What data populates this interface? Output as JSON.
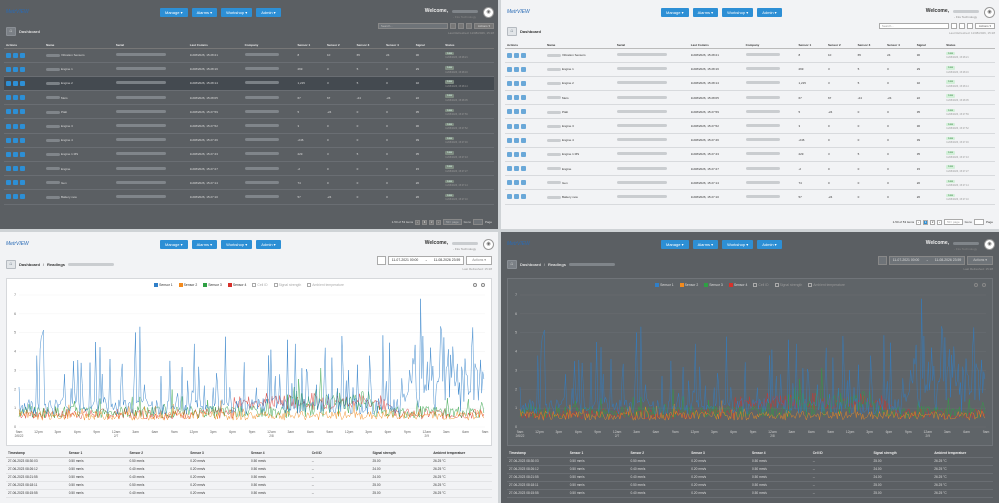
{
  "nav": {
    "manage": "Manage ▾",
    "alarms": "Alarms ▾",
    "workshop": "Workshop ▾",
    "admin": "Admin ▾"
  },
  "brand": {
    "logo": "Metr",
    "logo_accent": "VIEW"
  },
  "welcome": "Welcome,",
  "org_suffix": "- Fire Technology",
  "breadcrumb": {
    "dashboard": "Dashboard",
    "readings": "Readings"
  },
  "grid": {
    "headers": [
      "Actions",
      "Name",
      "Serial",
      "Last Comms",
      "Company",
      "Sensor 1",
      "Sensor 2",
      "Sensor 3",
      "Sensor 4",
      "Signal",
      "Status"
    ],
    "search_placeholder": "Search...",
    "actions_label": "Actions ▾",
    "last_refreshed": "Last Refreshed: 11/08/2026, 15:28",
    "rows": [
      {
        "name": "Vibration Sensors",
        "last": "11/08/2026, 15:28:21",
        "s1": "8",
        "s2": "10",
        "s3": "65",
        "s4": "24",
        "sig": "30",
        "status": "Live",
        "sdate": "11/08/2026, 15:28:21"
      },
      {
        "name": "Engine 1",
        "last": "11/08/2026, 15:28:16",
        "s1": "269",
        "s2": "3",
        "s3": "5",
        "s4": "0",
        "sig": "29",
        "status": "Live",
        "sdate": "11/08/2026, 15:28:16"
      },
      {
        "name": "Engine 2",
        "last": "11/08/2026, 15:28:14",
        "s1": "1,215",
        "s2": "3",
        "s3": "5",
        "s4": "0",
        "sig": "32",
        "status": "Live",
        "sdate": "11/08/2026, 15:28:14"
      },
      {
        "name": "Mers",
        "last": "11/08/2026, 15:28:05",
        "s1": "67",
        "s2": "67",
        "s3": "-24",
        "s4": "-24",
        "sig": "22",
        "status": "Live",
        "sdate": "11/08/2026, 15:28:05"
      },
      {
        "name": "Ptab",
        "last": "11/08/2026, 15:27:59",
        "s1": "5",
        "s2": "-24",
        "s3": "0",
        "s4": "0",
        "sig": "35",
        "status": "Live",
        "sdate": "11/08/2026, 15:27:59"
      },
      {
        "name": "Engine 3",
        "last": "11/08/2026, 15:27:52",
        "s1": "3",
        "s2": "0",
        "s3": "0",
        "s4": "0",
        "sig": "30",
        "status": "Live",
        "sdate": "11/08/2026, 15:27:52"
      },
      {
        "name": "Engine 4",
        "last": "11/08/2026, 15:27:46",
        "s1": "-246",
        "s2": "0",
        "s3": "0",
        "s4": "0",
        "sig": "39",
        "status": "Live",
        "sdate": "11/08/2026, 15:27:46"
      },
      {
        "name": "Engine 1 MS",
        "last": "11/08/2026, 15:27:43",
        "s1": "229",
        "s2": "3",
        "s3": "5",
        "s4": "0",
        "sig": "35",
        "status": "Live",
        "sdate": "11/08/2026, 15:27:43"
      },
      {
        "name": "Engine",
        "last": "11/08/2026, 15:27:27",
        "s1": "-2",
        "s2": "0",
        "s3": "0",
        "s4": "0",
        "sig": "15",
        "status": "Live",
        "sdate": "11/08/2026, 15:27:27"
      },
      {
        "name": "Gen",
        "last": "11/08/2026, 15:27:14",
        "s1": "74",
        "s2": "0",
        "s3": "0",
        "s4": "0",
        "sig": "20",
        "status": "Live",
        "sdate": "11/08/2026, 15:27:14"
      },
      {
        "name": "Battery new",
        "last": "11/08/2026, 15:27:10",
        "s1": "57",
        "s2": "-24",
        "s3": "0",
        "s4": "0",
        "sig": "26",
        "status": "Live",
        "sdate": "11/08/2026, 15:27:10"
      }
    ],
    "pager": "1-50 of 53 items",
    "page_size": "50 / page",
    "goto": "Go to",
    "page_word": "Page"
  },
  "readings": {
    "date_from": "11-07-2021 00:00",
    "date_to": "11-08-2026 23:59",
    "actions_label": "Actions ▾",
    "last_refreshed": "Last Refreshed: 15:28",
    "table_headers": [
      "Timestamp",
      "Sensor 1",
      "Sensor 2",
      "Sensor 3",
      "Sensor 4",
      "Cell ID",
      "Signal strength",
      "Ambient temperature"
    ],
    "table_rows": [
      [
        "27-06-2023 08:30:03",
        "0.50 mm/s",
        "0.50 mm/s",
        "0.20 mm/s",
        "0.50 mm/s",
        "--",
        "25.00",
        "26.25 °C"
      ],
      [
        "27-06-2023 08:26:12",
        "0.50 mm/s",
        "0.40 mm/s",
        "0.20 mm/s",
        "0.50 mm/s",
        "--",
        "24.00",
        "26.25 °C"
      ],
      [
        "27-06-2023 08:21:55",
        "0.50 mm/s",
        "0.40 mm/s",
        "0.20 mm/s",
        "0.50 mm/s",
        "--",
        "24.00",
        "26.25 °C"
      ],
      [
        "27-06-2023 08:18:11",
        "0.50 mm/s",
        "0.50 mm/s",
        "0.20 mm/s",
        "0.50 mm/s",
        "--",
        "25.00",
        "26.25 °C"
      ],
      [
        "27-06-2023 08:15:55",
        "0.50 mm/s",
        "0.40 mm/s",
        "0.20 mm/s",
        "0.50 mm/s",
        "--",
        "25.00",
        "26.25 °C"
      ]
    ]
  },
  "chart_data": {
    "type": "line",
    "legend": [
      "Sensor 1",
      "Sensor 2",
      "Sensor 3",
      "Sensor 4",
      "Cell ID",
      "Signal strength",
      "Ambient temperature"
    ],
    "legend_active": [
      true,
      true,
      true,
      true,
      false,
      false,
      false
    ],
    "colors": {
      "Sensor 1": "#2f7fc8",
      "Sensor 2": "#f28a1d",
      "Sensor 3": "#2ea043",
      "Sensor 4": "#d6312b",
      "Cell ID": "#cccccc",
      "Signal strength": "#cccccc",
      "Ambient temperature": "#cccccc"
    },
    "ylim": [
      0,
      7
    ],
    "yticks": [
      "0",
      "1",
      "2",
      "3",
      "4",
      "5",
      "6",
      "7"
    ],
    "xticks": [
      "9am\n2/6/22",
      "12pm",
      "3pm",
      "6pm",
      "9pm",
      "12am\n2/7",
      "3am",
      "6am",
      "9am",
      "12pm",
      "3pm",
      "6pm",
      "9pm",
      "12am\n2/8",
      "3am",
      "6am",
      "9am",
      "12pm",
      "3pm",
      "6pm",
      "9pm",
      "12am\n2/9",
      "3am",
      "6am",
      "9am"
    ],
    "series_profile": [
      {
        "name": "Sensor 1",
        "base": 1.1,
        "spike": 4.5
      },
      {
        "name": "Sensor 2",
        "base": 0.6,
        "spike": 0.6
      },
      {
        "name": "Sensor 3",
        "base": 0.8,
        "spike": 1.2
      },
      {
        "name": "Sensor 4",
        "base": 0.7,
        "spike": 0.8
      }
    ]
  }
}
